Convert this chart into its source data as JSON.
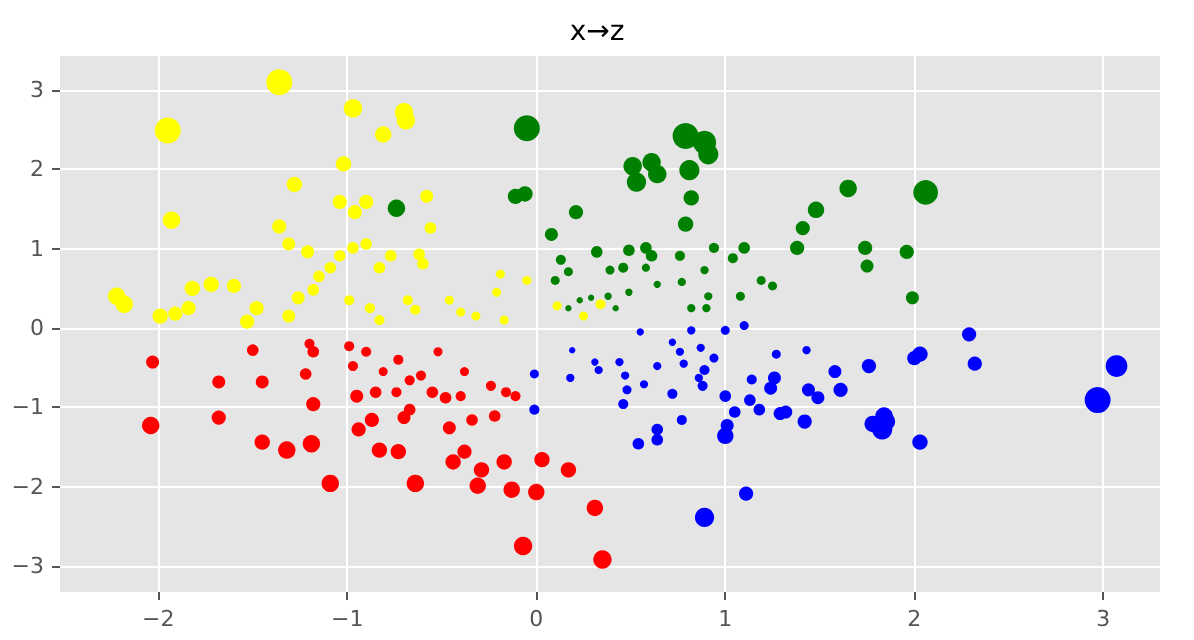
{
  "chart_data": {
    "type": "bubble",
    "title": "x→z",
    "xlim": [
      -2.52,
      3.3
    ],
    "ylim": [
      -3.33,
      3.43
    ],
    "xticks": [
      -2,
      -1,
      0,
      1,
      2,
      3
    ],
    "yticks": [
      -3,
      -2,
      -1,
      0,
      1,
      2,
      3
    ],
    "grid": true,
    "marker": "circle",
    "series": [
      {
        "color": "#ff0000",
        "x": [
          -2.03,
          -2.04,
          -1.68,
          -1.68,
          -1.45,
          -1.32,
          -1.19,
          -1.18,
          -1.09,
          -1.45,
          -1.5,
          -1.2,
          -1.18,
          -1.22,
          -0.95,
          -0.87,
          -0.85,
          -0.94,
          -0.83,
          -0.73,
          -0.7,
          -0.67,
          -0.64,
          -0.99,
          -0.97,
          -0.9,
          -0.73,
          -0.67,
          -0.61,
          -0.52,
          -0.55,
          -0.48,
          -0.46,
          -0.44,
          -0.38,
          -0.29,
          -0.31,
          -0.17,
          -0.13,
          -0.07,
          0.0,
          0.03,
          0.17,
          0.31,
          0.35,
          -0.38,
          -0.24,
          -0.11,
          -0.34,
          -0.22,
          -0.16,
          -0.4,
          -0.74,
          -0.81
        ],
        "values": [
          -0.43,
          -1.23,
          -0.68,
          -1.13,
          -1.44,
          -1.54,
          -1.46,
          -0.96,
          -1.96,
          -0.68,
          -0.28,
          -0.2,
          -0.3,
          -0.58,
          -0.86,
          -1.16,
          -0.81,
          -1.28,
          -1.54,
          -1.56,
          -1.13,
          -1.03,
          -1.96,
          -0.23,
          -0.48,
          -0.3,
          -0.4,
          -0.66,
          -0.6,
          -0.3,
          -0.81,
          -0.88,
          -1.26,
          -1.69,
          -1.56,
          -1.79,
          -1.99,
          -1.69,
          -2.04,
          -2.75,
          -2.07,
          -1.66,
          -1.79,
          -2.27,
          -2.92,
          -0.55,
          -0.73,
          -0.86,
          -1.16,
          -1.11,
          -0.81,
          -0.86,
          -0.81,
          -0.55
        ],
        "sizes": [
          0.25,
          0.45,
          0.25,
          0.3,
          0.35,
          0.45,
          0.45,
          0.3,
          0.45,
          0.25,
          0.2,
          0.15,
          0.2,
          0.2,
          0.25,
          0.3,
          0.2,
          0.3,
          0.35,
          0.35,
          0.25,
          0.2,
          0.45,
          0.15,
          0.15,
          0.15,
          0.15,
          0.15,
          0.15,
          0.12,
          0.2,
          0.2,
          0.25,
          0.35,
          0.3,
          0.35,
          0.4,
          0.35,
          0.4,
          0.5,
          0.4,
          0.35,
          0.35,
          0.4,
          0.5,
          0.12,
          0.15,
          0.15,
          0.2,
          0.2,
          0.15,
          0.15,
          0.15,
          0.12
        ]
      },
      {
        "color": "#ffff00",
        "x": [
          -1.36,
          -1.95,
          -0.97,
          -0.7,
          -0.69,
          -0.81,
          -1.02,
          -1.28,
          -1.93,
          -1.04,
          -0.96,
          -0.9,
          -0.58,
          -1.36,
          -1.31,
          -1.21,
          -1.04,
          -0.97,
          -0.9,
          -1.09,
          -1.15,
          -0.83,
          -0.62,
          -0.6,
          -2.22,
          -2.18,
          -1.72,
          -1.82,
          -1.6,
          -1.99,
          -1.84,
          -1.91,
          -1.48,
          -1.53,
          -1.31,
          -1.26,
          -1.18,
          -0.99,
          -0.88,
          -0.68,
          -0.83,
          -0.64,
          -0.46,
          -0.4,
          -0.32,
          -0.17,
          -0.21,
          -0.05,
          0.11,
          0.25,
          0.34,
          -0.77,
          -0.56,
          -0.19
        ],
        "values": [
          3.1,
          2.49,
          2.77,
          2.72,
          2.62,
          2.44,
          2.07,
          1.81,
          1.36,
          1.59,
          1.46,
          1.59,
          1.66,
          1.28,
          1.06,
          0.96,
          0.91,
          1.01,
          1.06,
          0.76,
          0.65,
          0.76,
          0.93,
          0.81,
          0.4,
          0.3,
          0.55,
          0.5,
          0.53,
          0.15,
          0.25,
          0.18,
          0.25,
          0.08,
          0.15,
          0.38,
          0.48,
          0.35,
          0.25,
          0.35,
          0.1,
          0.23,
          0.35,
          0.2,
          0.15,
          0.1,
          0.45,
          0.6,
          0.28,
          0.15,
          0.3,
          0.91,
          1.26,
          0.68
        ],
        "sizes": [
          1,
          1,
          0.5,
          0.5,
          0.5,
          0.4,
          0.35,
          0.35,
          0.45,
          0.3,
          0.3,
          0.3,
          0.25,
          0.3,
          0.25,
          0.25,
          0.2,
          0.2,
          0.2,
          0.2,
          0.2,
          0.2,
          0.2,
          0.2,
          0.45,
          0.45,
          0.35,
          0.35,
          0.3,
          0.35,
          0.3,
          0.3,
          0.3,
          0.3,
          0.25,
          0.25,
          0.2,
          0.15,
          0.15,
          0.15,
          0.15,
          0.15,
          0.12,
          0.12,
          0.12,
          0.12,
          0.12,
          0.12,
          0.12,
          0.12,
          0.15,
          0.2,
          0.2,
          0.12
        ]
      },
      {
        "color": "#008000",
        "x": [
          -0.05,
          -0.06,
          -0.11,
          0.21,
          0.08,
          0.51,
          0.53,
          0.64,
          0.61,
          0.79,
          0.89,
          0.91,
          0.81,
          0.82,
          0.79,
          1.65,
          2.06,
          1.48,
          1.41,
          1.38,
          1.74,
          1.75,
          1.96,
          1.99,
          -0.74,
          0.32,
          0.49,
          0.58,
          0.61,
          0.46,
          0.13,
          0.1,
          0.17,
          0.39,
          0.76,
          0.94,
          1.1,
          1.04,
          1.19,
          1.25,
          1.08,
          0.91,
          0.77,
          0.89,
          0.58,
          0.64,
          0.38,
          0.23,
          0.17,
          0.29,
          0.49,
          0.9,
          0.82,
          0.42
        ],
        "values": [
          2.52,
          1.69,
          1.66,
          1.46,
          1.18,
          2.04,
          1.84,
          1.94,
          2.09,
          2.42,
          2.34,
          2.19,
          1.99,
          1.64,
          1.31,
          1.76,
          1.71,
          1.49,
          1.26,
          1.01,
          1.01,
          0.78,
          0.96,
          0.38,
          1.51,
          0.96,
          0.98,
          1.01,
          0.91,
          0.76,
          0.86,
          0.6,
          0.71,
          0.73,
          0.91,
          1.01,
          1.01,
          0.88,
          0.6,
          0.53,
          0.4,
          0.4,
          0.58,
          0.73,
          0.76,
          0.55,
          0.4,
          0.35,
          0.25,
          0.38,
          0.45,
          0.25,
          0.25,
          0.25
        ],
        "sizes": [
          1,
          0.35,
          0.35,
          0.3,
          0.25,
          0.5,
          0.55,
          0.5,
          0.5,
          1,
          0.8,
          0.6,
          0.6,
          0.35,
          0.35,
          0.45,
          0.9,
          0.4,
          0.3,
          0.3,
          0.3,
          0.25,
          0.3,
          0.25,
          0.45,
          0.2,
          0.2,
          0.2,
          0.2,
          0.15,
          0.15,
          0.12,
          0.12,
          0.12,
          0.15,
          0.15,
          0.2,
          0.15,
          0.12,
          0.12,
          0.12,
          0.1,
          0.1,
          0.1,
          0.1,
          0.08,
          0.08,
          0.06,
          0.06,
          0.06,
          0.08,
          0.1,
          0.1,
          0.06
        ]
      },
      {
        "color": "#0000ff",
        "x": [
          2.97,
          3.07,
          2.29,
          2.32,
          2.03,
          2.0,
          1.85,
          1.84,
          1.83,
          1.78,
          2.03,
          1.76,
          1.58,
          1.61,
          1.26,
          1.24,
          1.0,
          0.89,
          1.11,
          1.01,
          1.05,
          1.18,
          1.29,
          1.32,
          1.44,
          1.49,
          1.42,
          1.13,
          1.14,
          1.0,
          0.88,
          0.72,
          0.64,
          0.54,
          0.64,
          0.77,
          0.46,
          0.48,
          0.64,
          1.0,
          1.1,
          0.82,
          -0.01,
          -0.01,
          0.44,
          0.89,
          0.94,
          1.27,
          1.43,
          0.86,
          0.78,
          0.31,
          0.19,
          0.55,
          0.72,
          0.76,
          0.47,
          0.33,
          0.18,
          0.87,
          0.57
        ],
        "values": [
          -0.91,
          -0.48,
          -0.08,
          -0.45,
          -0.33,
          -0.38,
          -1.18,
          -1.11,
          -1.28,
          -1.21,
          -1.44,
          -0.48,
          -0.55,
          -0.78,
          -0.63,
          -0.76,
          -1.36,
          -2.39,
          -2.09,
          -1.23,
          -1.06,
          -1.03,
          -1.08,
          -1.06,
          -0.78,
          -0.88,
          -1.18,
          -0.91,
          -0.65,
          -0.86,
          -0.73,
          -0.83,
          -1.28,
          -1.46,
          -1.41,
          -1.16,
          -0.96,
          -0.78,
          -0.48,
          -0.03,
          0.03,
          -0.03,
          -0.58,
          -1.03,
          -0.43,
          -0.53,
          -0.38,
          -0.33,
          -0.28,
          -0.63,
          -0.45,
          -0.43,
          -0.28,
          -0.05,
          -0.18,
          -0.3,
          -0.6,
          -0.53,
          -0.63,
          -0.25,
          -0.71
        ],
        "sizes": [
          1,
          0.7,
          0.3,
          0.3,
          0.35,
          0.3,
          0.5,
          0.45,
          0.6,
          0.4,
          0.35,
          0.3,
          0.25,
          0.3,
          0.25,
          0.25,
          0.4,
          0.55,
          0.3,
          0.25,
          0.2,
          0.2,
          0.25,
          0.25,
          0.25,
          0.25,
          0.3,
          0.2,
          0.15,
          0.2,
          0.15,
          0.15,
          0.2,
          0.2,
          0.2,
          0.15,
          0.15,
          0.12,
          0.1,
          0.12,
          0.12,
          0.1,
          0.12,
          0.15,
          0.1,
          0.15,
          0.12,
          0.12,
          0.1,
          0.1,
          0.1,
          0.08,
          0.06,
          0.08,
          0.08,
          0.1,
          0.1,
          0.1,
          0.1,
          0.1,
          0.1
        ]
      }
    ]
  }
}
